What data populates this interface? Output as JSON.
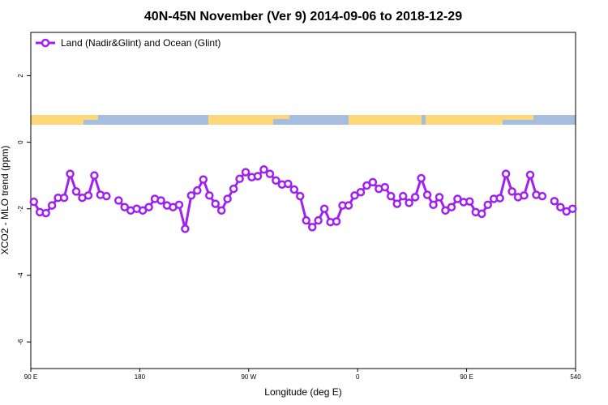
{
  "chart_data": {
    "type": "line",
    "title": "40N-45N November (Ver 9)   2014-09-06 to 2018-12-29",
    "xlabel": "Longitude (deg E)",
    "ylabel": "XCO2 - MLO trend (ppm)",
    "x": [
      92.5,
      97.5,
      102.5,
      107.5,
      112.5,
      117.5,
      122.5,
      127.5,
      132.5,
      137.5,
      142.5,
      147.5,
      152.5,
      157.5,
      162.5,
      167.5,
      172.5,
      177.5,
      182.5,
      187.5,
      192.5,
      197.5,
      202.5,
      207.5,
      212.5,
      217.5,
      222.5,
      227.5,
      232.5,
      237.5,
      242.5,
      247.5,
      252.5,
      257.5,
      262.5,
      267.5,
      272.5,
      277.5,
      282.5,
      287.5,
      292.5,
      297.5,
      302.5,
      307.5,
      312.5,
      317.5,
      322.5,
      327.5,
      332.5,
      337.5,
      342.5,
      347.5,
      352.5,
      357.5,
      362.5,
      367.5,
      372.5,
      377.5,
      382.5,
      387.5,
      392.5,
      397.5,
      402.5,
      407.5,
      412.5,
      417.5,
      422.5,
      427.5,
      432.5,
      437.5,
      442.5,
      447.5,
      452.5,
      457.5,
      462.5,
      467.5,
      472.5,
      477.5,
      482.5,
      487.5,
      492.5,
      497.5,
      502.5,
      507.5,
      512.5,
      517.5,
      522.5,
      527.5,
      532.5,
      537.5
    ],
    "series": [
      {
        "name": "Land (Nadir&Glint) and Ocean (Glint)",
        "color": "#a020f0",
        "values": [
          -1.79,
          -2.1,
          -2.13,
          -1.9,
          -1.67,
          -1.67,
          -0.95,
          -1.48,
          -1.67,
          -1.6,
          -1.0,
          -1.58,
          -1.62,
          null,
          -1.75,
          -1.95,
          -2.05,
          -2.0,
          -2.05,
          -1.95,
          -1.7,
          -1.75,
          -1.9,
          -1.95,
          -1.88,
          -2.6,
          -1.6,
          -1.45,
          -1.12,
          -1.6,
          -1.85,
          -2.05,
          -1.7,
          -1.4,
          -1.1,
          -0.9,
          -1.05,
          -1.02,
          -0.82,
          -0.95,
          -1.15,
          -1.27,
          -1.25,
          -1.42,
          -1.62,
          -2.35,
          -2.55,
          -2.35,
          -2.0,
          -2.4,
          -2.38,
          -1.9,
          -1.9,
          -1.6,
          -1.5,
          -1.3,
          -1.2,
          -1.4,
          -1.35,
          -1.62,
          -1.85,
          -1.62,
          -1.82,
          -1.65,
          -1.08,
          -1.58,
          -1.88,
          -1.65,
          -2.05,
          -1.95,
          -1.7,
          -1.8,
          -1.78,
          -2.1,
          -2.15,
          -1.88,
          -1.7,
          -1.68,
          -0.95,
          -1.48,
          -1.65,
          -1.6,
          -0.98,
          -1.58,
          -1.62,
          null,
          -1.77,
          -1.95,
          -2.08,
          -2.0
        ]
      }
    ],
    "xlim": [
      90,
      540
    ],
    "xticks": [
      {
        "value": 90,
        "label": "90 E"
      },
      180,
      {
        "value": 270,
        "label": "90 W"
      },
      {
        "value": 360,
        "label": "0"
      },
      {
        "value": 450,
        "label": "90 E"
      },
      540
    ],
    "ylim": [
      -6.8,
      3.3
    ],
    "yticks": [
      2,
      0,
      -2,
      -4,
      -6
    ],
    "legend": "upper left"
  }
}
